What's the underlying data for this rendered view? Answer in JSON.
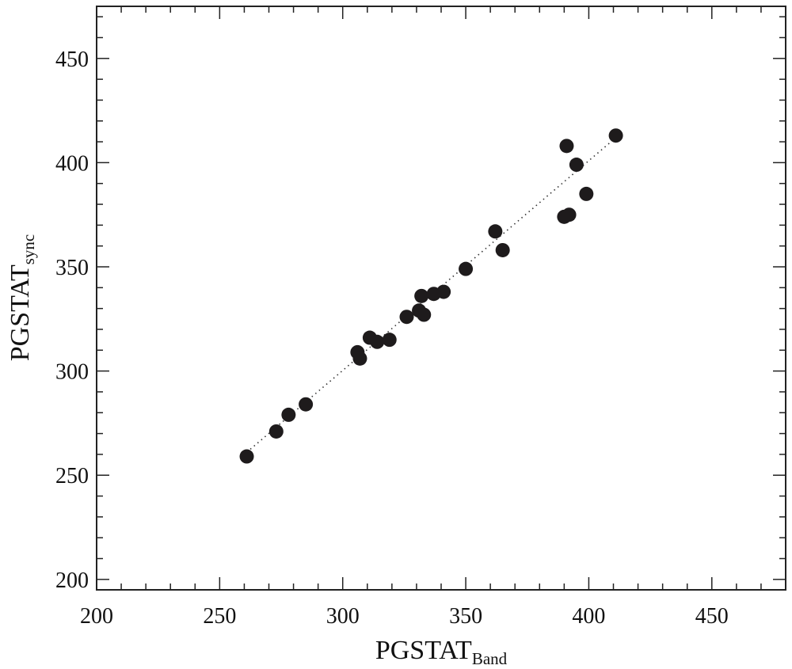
{
  "chart_data": {
    "type": "scatter",
    "xlabel": {
      "main": "PGSTAT",
      "sub": "Band"
    },
    "ylabel": {
      "main": "PGSTAT",
      "sub": "sync"
    },
    "xlim": [
      200,
      480
    ],
    "ylim": [
      195,
      475
    ],
    "x_ticks": [
      200,
      250,
      300,
      350,
      400,
      450
    ],
    "y_ticks": [
      200,
      250,
      300,
      350,
      400,
      450
    ],
    "minor_step": 10,
    "grid": false,
    "fit_line": {
      "style": "dotted",
      "from": [
        261,
        261
      ],
      "to": [
        411,
        412
      ]
    },
    "points": [
      {
        "x": 261,
        "y": 259
      },
      {
        "x": 273,
        "y": 271
      },
      {
        "x": 278,
        "y": 279
      },
      {
        "x": 285,
        "y": 284
      },
      {
        "x": 306,
        "y": 309
      },
      {
        "x": 307,
        "y": 306
      },
      {
        "x": 311,
        "y": 316
      },
      {
        "x": 314,
        "y": 314
      },
      {
        "x": 319,
        "y": 315
      },
      {
        "x": 326,
        "y": 326
      },
      {
        "x": 331,
        "y": 329
      },
      {
        "x": 332,
        "y": 336
      },
      {
        "x": 333,
        "y": 327
      },
      {
        "x": 337,
        "y": 337
      },
      {
        "x": 341,
        "y": 338
      },
      {
        "x": 350,
        "y": 349
      },
      {
        "x": 362,
        "y": 367
      },
      {
        "x": 365,
        "y": 358
      },
      {
        "x": 390,
        "y": 374
      },
      {
        "x": 392,
        "y": 375
      },
      {
        "x": 391,
        "y": 408
      },
      {
        "x": 395,
        "y": 399
      },
      {
        "x": 399,
        "y": 385
      },
      {
        "x": 411,
        "y": 413
      }
    ]
  }
}
